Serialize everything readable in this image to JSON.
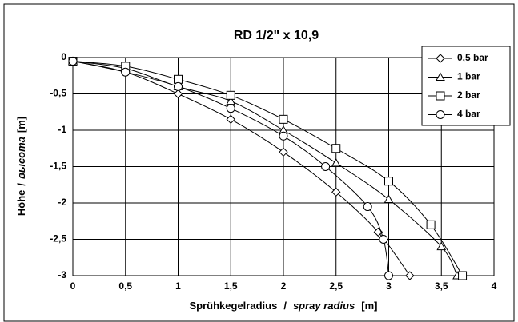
{
  "chart_data": {
    "type": "line",
    "title": "RD 1/2\" x 10,9",
    "xlabel": [
      "Sprühkegelradius",
      "/",
      "spray radius",
      "[m]"
    ],
    "ylabel": [
      "Höhe",
      "/",
      "высота",
      "[m]"
    ],
    "xlim": [
      0,
      4
    ],
    "ylim": [
      -3,
      0
    ],
    "xticks": [
      0,
      {
        "value": 0.5,
        "label": "0,5"
      },
      1,
      {
        "value": 1.5,
        "label": "1,5"
      },
      2,
      {
        "value": 2.5,
        "label": "2,5"
      },
      3,
      {
        "value": 3.5,
        "label": "3,5"
      },
      4
    ],
    "yticks": [
      0,
      {
        "value": -0.5,
        "label": "-0,5"
      },
      -1,
      {
        "value": -1.5,
        "label": "-1,5"
      },
      -2,
      {
        "value": -2.5,
        "label": "-2,5"
      },
      -3
    ],
    "grid": true,
    "legend": "upper right",
    "series": [
      {
        "name": "0,5 bar",
        "marker": "diamond",
        "color": "#000000",
        "x": [
          0,
          0.5,
          1,
          1.5,
          2,
          2.5,
          2.9,
          3.2
        ],
        "values": [
          -0.05,
          -0.2,
          -0.5,
          -0.85,
          -1.3,
          -1.85,
          -2.4,
          -3
        ]
      },
      {
        "name": "1 bar",
        "marker": "triangle",
        "color": "#000000",
        "x": [
          0,
          0.5,
          1,
          1.5,
          2,
          2.5,
          3,
          3.5,
          3.65
        ],
        "values": [
          -0.05,
          -0.15,
          -0.4,
          -0.6,
          -1.0,
          -1.45,
          -1.95,
          -2.6,
          -3
        ]
      },
      {
        "name": "2 bar",
        "marker": "square",
        "color": "#000000",
        "x": [
          0,
          0.5,
          1,
          1.5,
          2,
          2.5,
          3,
          3.4,
          3.7
        ],
        "values": [
          -0.05,
          -0.12,
          -0.3,
          -0.52,
          -0.85,
          -1.25,
          -1.7,
          -2.3,
          -3
        ]
      },
      {
        "name": "4 bar",
        "marker": "circle",
        "color": "#000000",
        "x": [
          0,
          0.5,
          1,
          1.5,
          2,
          2.4,
          2.8,
          2.95,
          3
        ],
        "values": [
          -0.05,
          -0.2,
          -0.4,
          -0.7,
          -1.08,
          -1.5,
          -2.05,
          -2.5,
          -3
        ]
      }
    ]
  }
}
